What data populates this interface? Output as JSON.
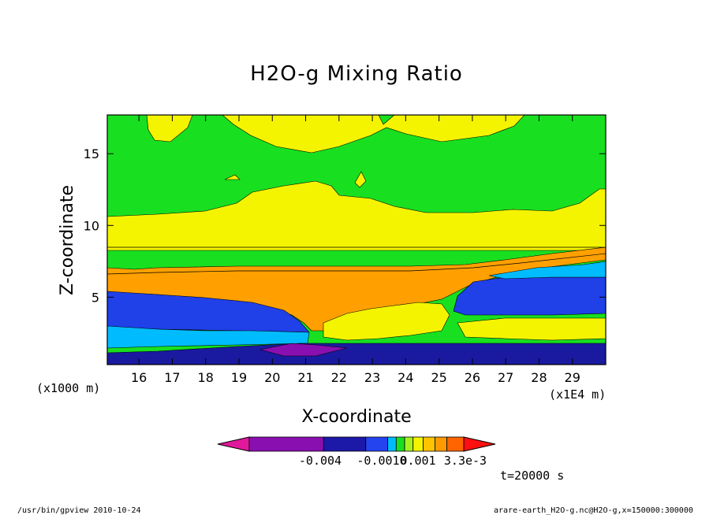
{
  "chart_data": {
    "type": "heatmap",
    "title": "H2O-g Mixing Ratio",
    "xlabel": "X-coordinate",
    "ylabel": "Z-coordinate",
    "x_scale_label": "(x1E4 m)",
    "y_scale_label": "(x1000 m)",
    "x_ticks": [
      "16",
      "17",
      "18",
      "19",
      "20",
      "21",
      "22",
      "23",
      "24",
      "25",
      "26",
      "27",
      "28",
      "29"
    ],
    "x_tick_values": [
      16,
      17,
      18,
      19,
      20,
      21,
      22,
      23,
      24,
      25,
      26,
      27,
      28,
      29
    ],
    "y_ticks": [
      "5",
      "10",
      "15"
    ],
    "y_tick_values": [
      5,
      10,
      15
    ],
    "xlim": [
      15.05,
      30
    ],
    "ylim": [
      0.3,
      17.7
    ],
    "colorbar": {
      "colors": [
        "#e0189c",
        "#8a0fb0",
        "#1c18a8",
        "#2444f0",
        "#00bcff",
        "#18e020",
        "#a8f020",
        "#f4f400",
        "#ffc400",
        "#ff9a00",
        "#ff6400",
        "#ff1010"
      ],
      "labels": [
        "-0.004",
        "-0.0010",
        "0.001",
        "3.3e-3"
      ]
    },
    "contour_bands": [
      {
        "name": "top-green",
        "color": "#18e020",
        "z_top": 17.7,
        "z_bottom": 10.6
      },
      {
        "name": "upper-yellow",
        "color": "#f4f400",
        "z_top": 10.6,
        "z_bottom": 8.2
      },
      {
        "name": "middle-orange",
        "color": "#ffa000",
        "z_top": 7.0,
        "z_bottom": 4.8
      },
      {
        "name": "lower-blue",
        "color": "#2040e8",
        "z_top": 4.8,
        "z_bottom": 2.5
      },
      {
        "name": "surface-navy",
        "color": "#1a1aa0",
        "z_top": 1.5,
        "z_bottom": 0.3
      }
    ]
  },
  "footer": {
    "program": "/usr/bin/gpview  2010-10-24",
    "time": "t=20000 s",
    "source": "arare-earth_H2O-g.nc@H2O-g,x=150000:300000"
  }
}
